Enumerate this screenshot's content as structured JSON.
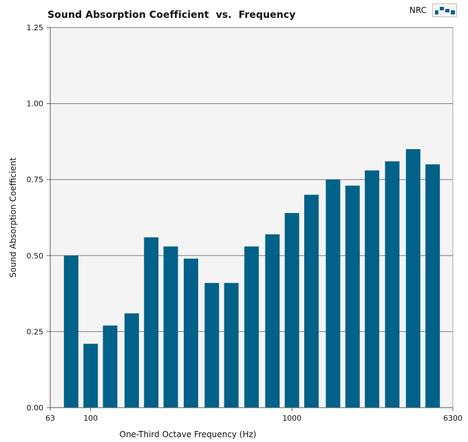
{
  "chart_data": {
    "type": "bar",
    "title": "Sound Absorption Coefficient  vs.  Frequency",
    "xlabel": "One-Third Octave Frequency (Hz)",
    "ylabel": "Sound Absorption Coefficient",
    "x_scale": "log",
    "xlim": [
      63,
      6300
    ],
    "ylim": [
      0,
      1.25
    ],
    "x_tick_labels": [
      "63",
      "100",
      "1000",
      "6300"
    ],
    "y_tick_labels": [
      "0.00",
      "0.25",
      "0.50",
      "0.75",
      "1.00",
      "1.25"
    ],
    "grid": true,
    "legend": "top-right",
    "bar_color": "#006289",
    "plot_background": "#f4f4f4",
    "series": [
      {
        "name": "NRC",
        "x": [
          80,
          100,
          125,
          160,
          200,
          250,
          315,
          400,
          500,
          630,
          800,
          1000,
          1250,
          1600,
          2000,
          2500,
          3150,
          4000,
          5000
        ],
        "values": [
          0.5,
          0.21,
          0.27,
          0.31,
          0.56,
          0.53,
          0.49,
          0.41,
          0.41,
          0.53,
          0.57,
          0.64,
          0.7,
          0.75,
          0.73,
          0.78,
          0.81,
          0.85,
          0.8
        ]
      }
    ]
  }
}
